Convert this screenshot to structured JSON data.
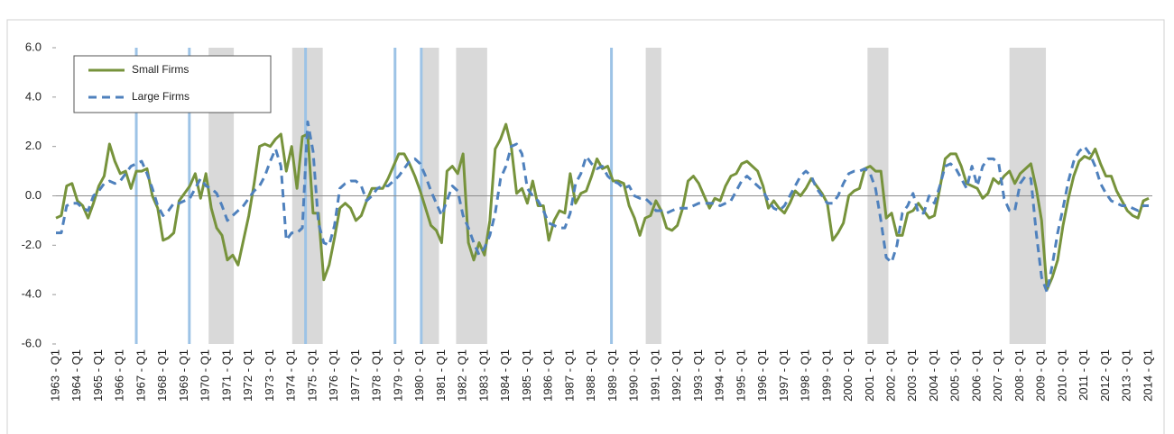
{
  "chart_data": {
    "type": "line",
    "categories": [
      "1963 - Q1",
      null,
      null,
      null,
      "1964 - Q1",
      null,
      null,
      null,
      "1965 - Q1",
      null,
      null,
      null,
      "1966 - Q1",
      null,
      null,
      null,
      "1967 - Q1",
      null,
      null,
      null,
      "1968 - Q1",
      null,
      null,
      null,
      "1969 - Q1",
      null,
      null,
      null,
      "1970 - Q1",
      null,
      null,
      null,
      "1971 - Q1",
      null,
      null,
      null,
      "1972 - Q1",
      null,
      null,
      null,
      "1973 - Q1",
      null,
      null,
      null,
      "1974 - Q1",
      null,
      null,
      null,
      "1975 - Q1",
      null,
      null,
      null,
      "1976 - Q1",
      null,
      null,
      null,
      "1977 - Q1",
      null,
      null,
      null,
      "1978 - Q1",
      null,
      null,
      null,
      "1979 - Q1",
      null,
      null,
      null,
      "1980 - Q1",
      null,
      null,
      null,
      "1981 - Q1",
      null,
      null,
      null,
      "1982 - Q1",
      null,
      null,
      null,
      "1983 - Q1",
      null,
      null,
      null,
      "1984 - Q1",
      null,
      null,
      null,
      "1985 - Q1",
      null,
      null,
      null,
      "1986 - Q1",
      null,
      null,
      null,
      "1987 - Q1",
      null,
      null,
      null,
      "1988 - Q1",
      null,
      null,
      null,
      "1989 - Q1",
      null,
      null,
      null,
      "1990 - Q1",
      null,
      null,
      null,
      "1991 - Q1",
      null,
      null,
      null,
      "1992 - Q1",
      null,
      null,
      null,
      "1993 - Q1",
      null,
      null,
      null,
      "1994 - Q1",
      null,
      null,
      null,
      "1995 - Q1",
      null,
      null,
      null,
      "1996 - Q1",
      null,
      null,
      null,
      "1997 - Q1",
      null,
      null,
      null,
      "1998 - Q1",
      null,
      null,
      null,
      "1999 - Q1",
      null,
      null,
      null,
      "2000 - Q1",
      null,
      null,
      null,
      "2001 - Q1",
      null,
      null,
      null,
      "2002 - Q1",
      null,
      null,
      null,
      "2003 - Q1",
      null,
      null,
      null,
      "2004 - Q1",
      null,
      null,
      null,
      "2005 - Q1",
      null,
      null,
      null,
      "2006 - Q1",
      null,
      null,
      null,
      "2007 - Q1",
      null,
      null,
      null,
      "2008 - Q1",
      null,
      null,
      null,
      "2009 - Q1",
      null,
      null,
      null,
      "2010 - Q1",
      null,
      null,
      null,
      "2011 - Q1",
      null,
      null,
      null,
      "2012 - Q1",
      null,
      null,
      null,
      "2013 - Q1",
      null,
      null,
      null,
      "2014 - Q1"
    ],
    "series": [
      {
        "name": "Small Firms",
        "color": "#77933c",
        "style": "solid",
        "values": [
          -0.9,
          -0.8,
          0.4,
          0.5,
          -0.2,
          -0.4,
          -0.9,
          -0.3,
          0.4,
          0.8,
          2.1,
          1.4,
          0.9,
          1.0,
          0.3,
          1.0,
          1.0,
          1.1,
          0.0,
          -0.5,
          -1.8,
          -1.7,
          -1.5,
          -0.2,
          0.1,
          0.4,
          0.9,
          -0.1,
          0.9,
          -0.5,
          -1.3,
          -1.6,
          -2.6,
          -2.4,
          -2.8,
          -1.8,
          -0.8,
          0.5,
          2.0,
          2.1,
          2.0,
          2.3,
          2.5,
          1.0,
          2.0,
          0.3,
          2.4,
          2.5,
          -0.7,
          -0.7,
          -3.4,
          -2.8,
          -1.7,
          -0.5,
          -0.3,
          -0.5,
          -1.0,
          -0.8,
          -0.2,
          0.3,
          0.3,
          0.3,
          0.7,
          1.2,
          1.7,
          1.7,
          1.3,
          0.8,
          0.2,
          -0.5,
          -1.2,
          -1.4,
          -1.9,
          1.0,
          1.2,
          0.9,
          1.7,
          -1.9,
          -2.6,
          -1.9,
          -2.4,
          -1.0,
          1.9,
          2.3,
          2.9,
          2.0,
          0.1,
          0.3,
          -0.3,
          0.6,
          -0.4,
          -0.4,
          -1.8,
          -1.0,
          -0.6,
          -0.7,
          0.9,
          -0.3,
          0.1,
          0.2,
          0.8,
          1.5,
          1.1,
          1.2,
          0.6,
          0.6,
          0.5,
          -0.4,
          -0.9,
          -1.6,
          -0.9,
          -0.8,
          -0.2,
          -0.6,
          -1.3,
          -1.4,
          -1.2,
          -0.5,
          0.6,
          0.8,
          0.5,
          0.0,
          -0.5,
          -0.1,
          -0.2,
          0.4,
          0.8,
          0.9,
          1.3,
          1.4,
          1.2,
          1.0,
          0.4,
          -0.5,
          -0.2,
          -0.5,
          -0.7,
          -0.3,
          0.2,
          0.0,
          0.3,
          0.7,
          0.4,
          0.1,
          -0.3,
          -1.8,
          -1.5,
          -1.1,
          0.0,
          0.2,
          0.3,
          1.1,
          1.2,
          1.0,
          1.0,
          -0.9,
          -0.7,
          -1.6,
          -1.6,
          -0.7,
          -0.6,
          -0.3,
          -0.6,
          -0.9,
          -0.8,
          0.3,
          1.5,
          1.7,
          1.7,
          1.2,
          0.5,
          0.4,
          0.3,
          -0.1,
          0.1,
          0.7,
          0.5,
          0.8,
          1.0,
          0.5,
          0.9,
          1.1,
          1.3,
          0.3,
          -1.0,
          -3.8,
          -3.3,
          -2.6,
          -1.2,
          -0.1,
          0.8,
          1.4,
          1.6,
          1.5,
          1.9,
          1.3,
          0.8,
          0.8,
          0.2,
          -0.2,
          -0.6,
          -0.8,
          -0.9,
          -0.2,
          -0.1
        ]
      },
      {
        "name": "Large Firms",
        "color": "#4f81bd",
        "style": "dashed",
        "values": [
          -1.5,
          -1.5,
          -0.4,
          -0.3,
          -0.3,
          -0.5,
          -0.6,
          0.0,
          0.2,
          0.5,
          0.6,
          0.5,
          0.6,
          0.9,
          1.2,
          1.3,
          1.4,
          0.9,
          0.3,
          -0.4,
          -0.8,
          -0.6,
          -0.3,
          -0.3,
          -0.2,
          -0.1,
          0.3,
          0.7,
          0.4,
          0.3,
          0.1,
          -0.4,
          -1.0,
          -0.8,
          -0.6,
          -0.4,
          -0.1,
          0.2,
          0.4,
          0.8,
          1.4,
          1.9,
          1.2,
          -1.8,
          -1.5,
          -1.5,
          -1.3,
          3.0,
          1.8,
          -1.1,
          -1.9,
          -2.0,
          -1.2,
          0.3,
          0.5,
          0.6,
          0.6,
          0.4,
          -0.2,
          0.0,
          0.3,
          0.4,
          0.4,
          0.6,
          0.8,
          1.1,
          1.4,
          1.5,
          1.3,
          0.8,
          0.2,
          -0.3,
          -0.8,
          -0.2,
          0.4,
          0.2,
          -0.8,
          -1.3,
          -1.9,
          -2.4,
          -2.1,
          -1.6,
          -0.7,
          0.7,
          1.2,
          2.0,
          2.1,
          1.7,
          0.3,
          0.0,
          -0.2,
          -0.6,
          -1.1,
          -1.2,
          -1.3,
          -1.3,
          -0.7,
          0.5,
          0.9,
          1.6,
          1.3,
          1.1,
          1.2,
          0.8,
          0.6,
          0.5,
          0.3,
          0.4,
          0.0,
          -0.1,
          -0.1,
          -0.3,
          -0.6,
          -0.6,
          -0.7,
          -0.6,
          -0.5,
          -0.5,
          -0.5,
          -0.4,
          -0.3,
          -0.3,
          -0.3,
          -0.3,
          -0.4,
          -0.3,
          -0.2,
          0.2,
          0.6,
          0.8,
          0.6,
          0.4,
          0.2,
          -0.2,
          -0.5,
          -0.6,
          -0.4,
          0.0,
          0.4,
          0.8,
          1.0,
          0.8,
          0.3,
          0.0,
          -0.3,
          -0.3,
          0.0,
          0.5,
          0.9,
          1.0,
          1.0,
          1.1,
          0.9,
          0.3,
          -1.0,
          -2.5,
          -2.7,
          -2.0,
          -0.7,
          -0.4,
          0.1,
          -0.7,
          -0.7,
          0.0,
          -0.3,
          0.4,
          1.2,
          1.3,
          1.1,
          0.7,
          0.3,
          1.2,
          0.4,
          1.2,
          1.5,
          1.5,
          1.3,
          -0.1,
          -0.6,
          -0.6,
          0.5,
          0.8,
          0.7,
          -1.5,
          -3.3,
          -3.9,
          -2.8,
          -1.5,
          -0.5,
          0.6,
          1.4,
          1.8,
          2.0,
          1.7,
          1.2,
          0.5,
          0.1,
          -0.2,
          -0.3,
          -0.4,
          -0.4,
          -0.5,
          -0.6,
          -0.4,
          -0.4
        ]
      }
    ],
    "ylim": [
      -6,
      6
    ],
    "yticks": [
      {
        "value": -6,
        "label": "-6.0"
      },
      {
        "value": -4,
        "label": "-4.0"
      },
      {
        "value": -2,
        "label": "-2.0"
      },
      {
        "value": 0,
        "label": "0.0"
      },
      {
        "value": 2,
        "label": "2.0"
      },
      {
        "value": 4,
        "label": "4.0"
      },
      {
        "value": 6,
        "label": "6.0"
      }
    ],
    "legend": "top-left",
    "shaded_periods": [
      [
        28.5,
        33.2
      ],
      [
        44.1,
        49.8
      ],
      [
        68.4,
        71.5
      ],
      [
        74.7,
        80.5
      ],
      [
        110.1,
        113.0
      ],
      [
        151.5,
        155.4
      ],
      [
        178.0,
        184.8
      ]
    ],
    "shade_color": "#d9d9d9",
    "vertical_lines": [
      15,
      24.9,
      46.6,
      63.3,
      68.2,
      103.7
    ],
    "vertical_line_color": "#9dc3e6"
  }
}
